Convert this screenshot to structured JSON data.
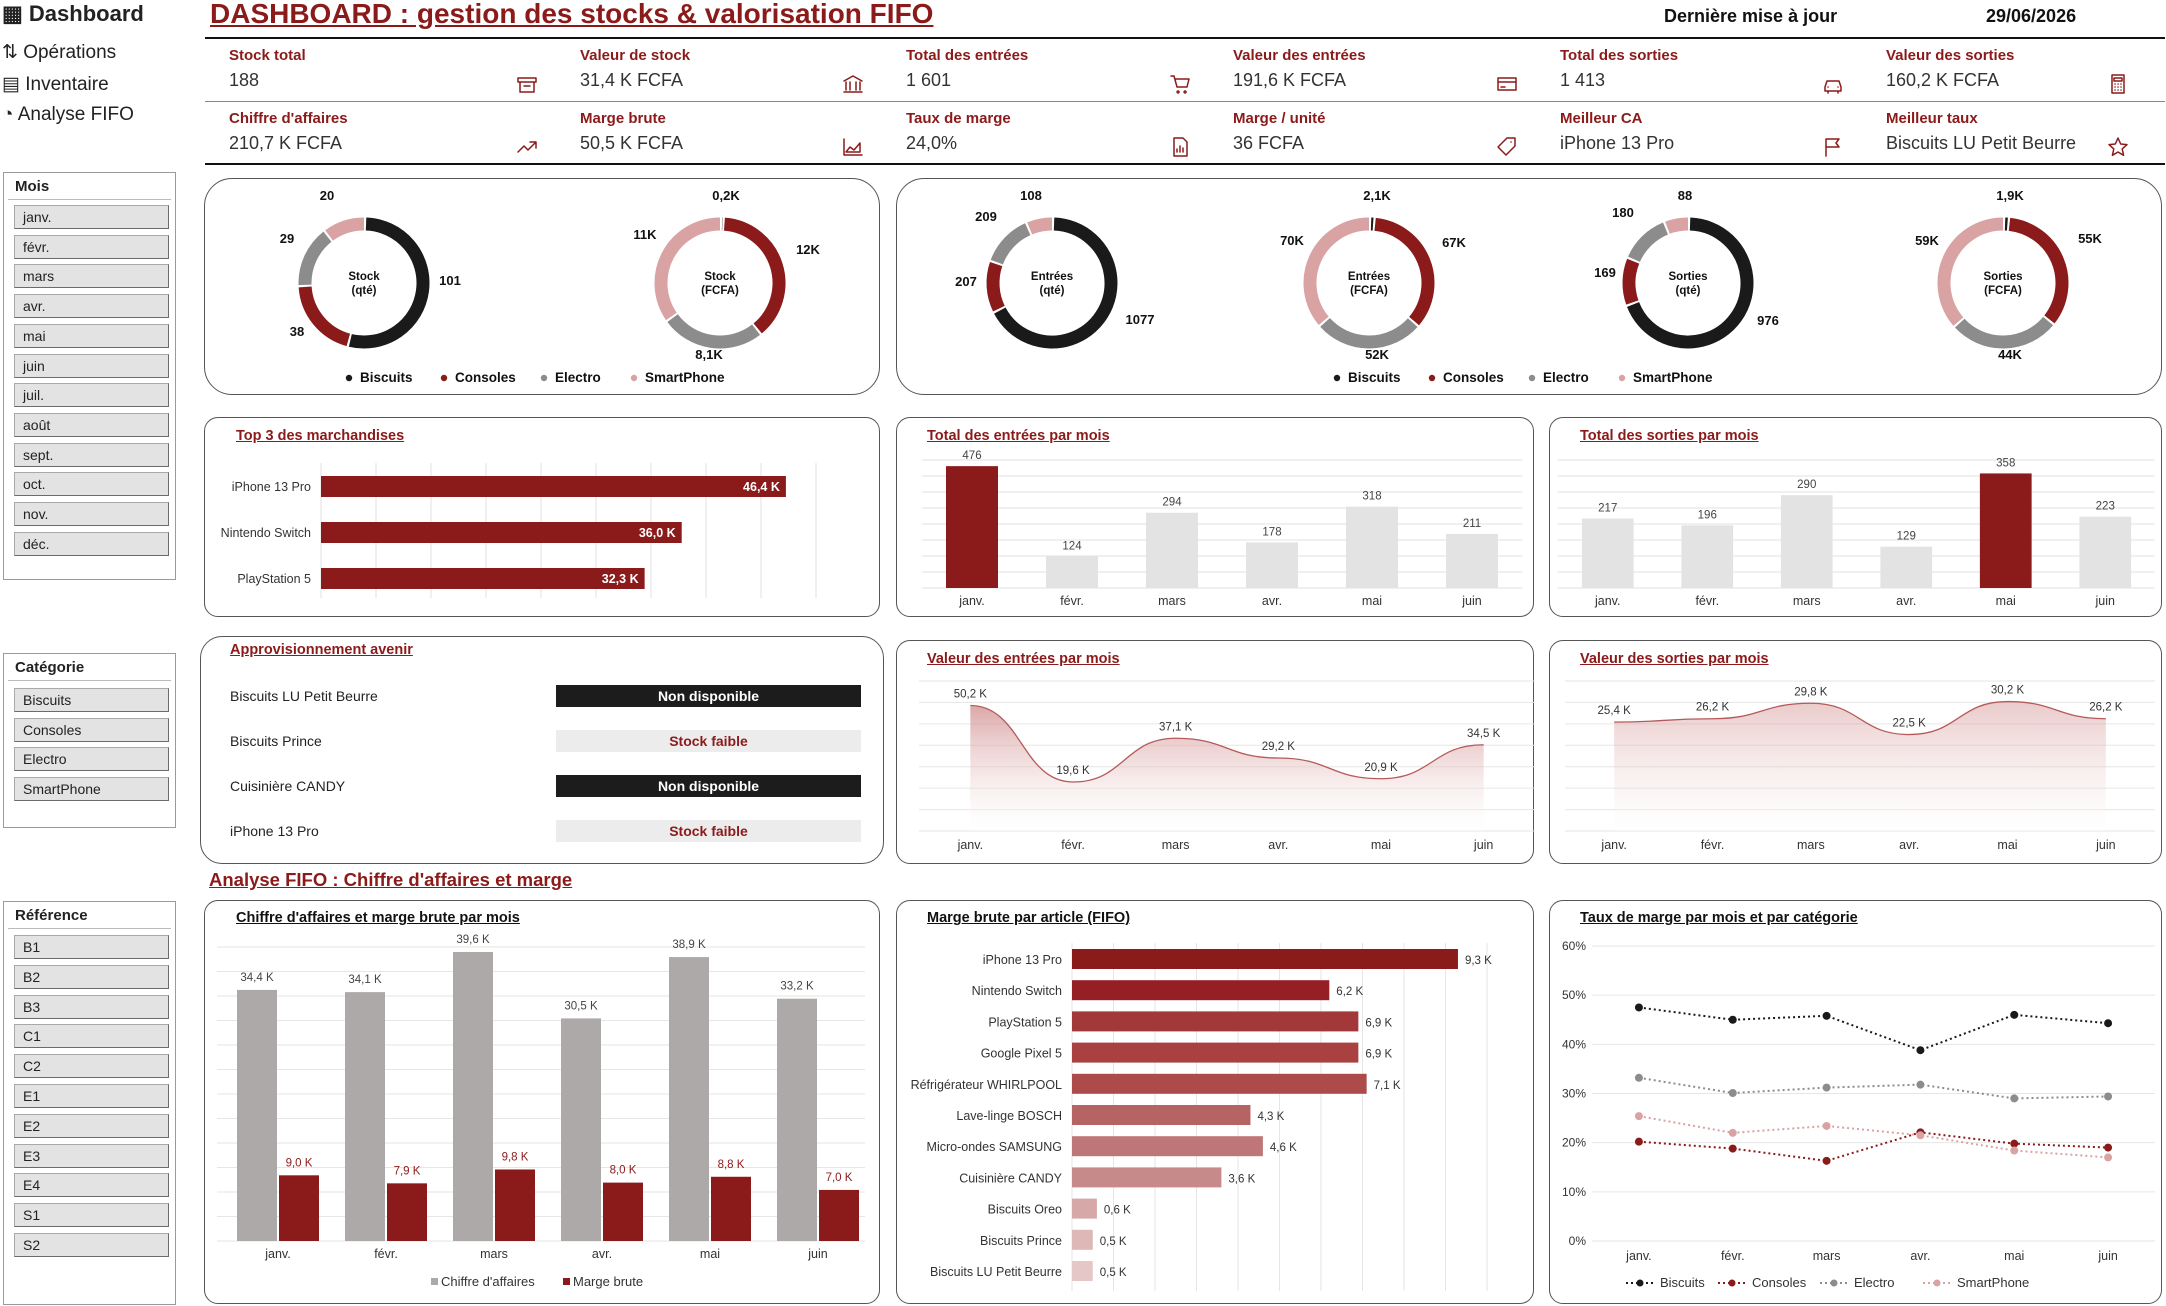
{
  "nav": {
    "items": [
      {
        "icon": "▦",
        "label": "Dashboard"
      },
      {
        "icon": "⇅",
        "label": "Opérations"
      },
      {
        "icon": "▤",
        "label": "Inventaire"
      },
      {
        "icon": "◔",
        "label": "Analyse FIFO"
      }
    ]
  },
  "header": {
    "title": "DASHBOARD : gestion des stocks & valorisation FIFO",
    "updated_label": "Dernière mise à jour",
    "updated_date": "29/06/2026"
  },
  "kpis": [
    {
      "label": "Stock total",
      "value": "188",
      "icon": "box-icon"
    },
    {
      "label": "Valeur de stock",
      "value": "31,4 K FCFA",
      "icon": "bank-icon"
    },
    {
      "label": "Total des entrées",
      "value": "1 601",
      "icon": "cart-icon"
    },
    {
      "label": "Valeur des entrées",
      "value": "191,6 K FCFA",
      "icon": "card-icon"
    },
    {
      "label": "Total des sorties",
      "value": "1 413",
      "icon": "car-icon"
    },
    {
      "label": "Valeur des sorties",
      "value": "160,2 K FCFA",
      "icon": "calculator-icon"
    },
    {
      "label": "Chiffre d'affaires",
      "value": "210,7 K FCFA",
      "icon": "trend-up-icon"
    },
    {
      "label": "Marge brute",
      "value": "50,5 K FCFA",
      "icon": "area-chart-icon"
    },
    {
      "label": "Taux de marge",
      "value": "24,0%",
      "icon": "report-icon"
    },
    {
      "label": "Marge / unité",
      "value": "36 FCFA",
      "icon": "tag-icon"
    },
    {
      "label": "Meilleur CA",
      "value": "iPhone 13 Pro",
      "icon": "flag-icon"
    },
    {
      "label": "Meilleur taux",
      "value": "Biscuits LU Petit Beurre",
      "icon": "star-icon"
    }
  ],
  "slicers": {
    "mois": {
      "header": "Mois",
      "items": [
        "janv.",
        "févr.",
        "mars",
        "avr.",
        "mai",
        "juin",
        "juil.",
        "août",
        "sept.",
        "oct.",
        "nov.",
        "déc."
      ]
    },
    "categorie": {
      "header": "Catégorie",
      "items": [
        "Biscuits",
        "Consoles",
        "Electro",
        "SmartPhone"
      ]
    },
    "reference": {
      "header": "Référence",
      "items": [
        "B1",
        "B2",
        "B3",
        "C1",
        "C2",
        "E1",
        "E2",
        "E3",
        "E4",
        "S1",
        "S2"
      ]
    }
  },
  "colors": {
    "biscuits": "#1a1a1a",
    "consoles": "#8b1a1a",
    "electro": "#8c8c8c",
    "smartphone": "#d9a3a3",
    "accent": "#8b1a1a",
    "bar_gray": "#e3e3e3",
    "ca_gray": "#ada9a9"
  },
  "legend": [
    "Biscuits",
    "Consoles",
    "Electro",
    "SmartPhone"
  ],
  "approvisionnement": {
    "title": "Approvisionnement avenir",
    "rows": [
      {
        "name": "Biscuits LU Petit Beurre",
        "status": "Non disponible"
      },
      {
        "name": "Biscuits Prince",
        "status": "Stock faible"
      },
      {
        "name": "Cuisinière CANDY",
        "status": "Non disponible"
      },
      {
        "name": "iPhone 13 Pro",
        "status": "Stock faible"
      }
    ]
  },
  "section_title": "Analyse FIFO : Chiffre d'affaires et marge",
  "chart_data": [
    {
      "type": "pie",
      "id": "stock_qte",
      "title": "Stock (qté)",
      "categories": [
        "Biscuits",
        "Consoles",
        "Electro",
        "SmartPhone"
      ],
      "values": [
        101,
        38,
        29,
        20
      ],
      "labels": [
        "101",
        "38",
        "29",
        "20"
      ]
    },
    {
      "type": "pie",
      "id": "stock_fcfa",
      "title": "Stock (FCFA)",
      "categories": [
        "Biscuits",
        "Consoles",
        "Electro",
        "SmartPhone"
      ],
      "values": [
        0.2,
        12,
        8.1,
        11
      ],
      "labels": [
        "0,2K",
        "12K",
        "8,1K",
        "11K"
      ]
    },
    {
      "type": "pie",
      "id": "entrees_qte",
      "title": "Entrées (qté)",
      "categories": [
        "Biscuits",
        "Consoles",
        "Electro",
        "SmartPhone"
      ],
      "values": [
        1077,
        207,
        209,
        108
      ],
      "labels": [
        "1077",
        "207",
        "209",
        "108"
      ]
    },
    {
      "type": "pie",
      "id": "entrees_fcfa",
      "title": "Entrées (FCFA)",
      "categories": [
        "Biscuits",
        "Consoles",
        "Electro",
        "SmartPhone"
      ],
      "values": [
        2.1,
        67,
        52,
        70
      ],
      "labels": [
        "2,1K",
        "67K",
        "52K",
        "70K"
      ]
    },
    {
      "type": "pie",
      "id": "sorties_qte",
      "title": "Sorties (qté)",
      "categories": [
        "Biscuits",
        "Consoles",
        "Electro",
        "SmartPhone"
      ],
      "values": [
        976,
        169,
        180,
        88
      ],
      "labels": [
        "976",
        "169",
        "180",
        "88"
      ]
    },
    {
      "type": "pie",
      "id": "sorties_fcfa",
      "title": "Sorties (FCFA)",
      "categories": [
        "Biscuits",
        "Consoles",
        "Electro",
        "SmartPhone"
      ],
      "values": [
        1.9,
        55,
        44,
        59
      ],
      "labels": [
        "1,9K",
        "55K",
        "44K",
        "59K"
      ]
    },
    {
      "type": "bar",
      "id": "top3",
      "title": "Top 3 des marchandises",
      "orientation": "horizontal",
      "categories": [
        "iPhone 13 Pro",
        "Nintendo Switch",
        "PlayStation 5"
      ],
      "values": [
        46.4,
        36.0,
        32.3
      ],
      "labels": [
        "46,4 K",
        "36,0 K",
        "32,3 K"
      ],
      "xlim": [
        0,
        50
      ]
    },
    {
      "type": "bar",
      "id": "entrees_mois",
      "title": "Total des entrées par mois",
      "categories": [
        "janv.",
        "févr.",
        "mars",
        "avr.",
        "mai",
        "juin"
      ],
      "values": [
        476,
        124,
        294,
        178,
        318,
        211
      ],
      "ylim": [
        0,
        500
      ]
    },
    {
      "type": "bar",
      "id": "sorties_mois",
      "title": "Total des sorties par mois",
      "categories": [
        "janv.",
        "févr.",
        "mars",
        "avr.",
        "mai",
        "juin"
      ],
      "values": [
        217,
        196,
        290,
        129,
        358,
        223
      ],
      "ylim": [
        0,
        400
      ]
    },
    {
      "type": "area",
      "id": "val_entrees",
      "title": "Valeur des entrées par mois",
      "categories": [
        "janv.",
        "févr.",
        "mars",
        "avr.",
        "mai",
        "juin"
      ],
      "values": [
        50.2,
        19.6,
        37.1,
        29.2,
        20.9,
        34.5
      ],
      "labels": [
        "50,2 K",
        "19,6 K",
        "37,1 K",
        "29,2 K",
        "20,9 K",
        "34,5 K"
      ],
      "ylim": [
        0,
        60
      ]
    },
    {
      "type": "area",
      "id": "val_sorties",
      "title": "Valeur des sorties par mois",
      "categories": [
        "janv.",
        "févr.",
        "mars",
        "avr.",
        "mai",
        "juin"
      ],
      "values": [
        25.4,
        26.2,
        29.8,
        22.5,
        30.2,
        26.2
      ],
      "labels": [
        "25,4 K",
        "26,2 K",
        "29,8 K",
        "22,5 K",
        "30,2 K",
        "26,2 K"
      ],
      "ylim": [
        0,
        35
      ]
    },
    {
      "type": "bar",
      "id": "ca_marge",
      "title": "Chiffre d'affaires et marge brute par mois",
      "categories": [
        "janv.",
        "févr.",
        "mars",
        "avr.",
        "mai",
        "juin"
      ],
      "series": [
        {
          "name": "Chiffre d'affaires",
          "values": [
            34.4,
            34.1,
            39.6,
            30.5,
            38.9,
            33.2
          ],
          "labels": [
            "34,4 K",
            "34,1 K",
            "39,6 K",
            "30,5 K",
            "38,9 K",
            "33,2 K"
          ]
        },
        {
          "name": "Marge brute",
          "values": [
            9.0,
            7.9,
            9.8,
            8.0,
            8.8,
            7.0
          ],
          "labels": [
            "9,0 K",
            "7,9 K",
            "9,8 K",
            "8,0 K",
            "8,8 K",
            "7,0 K"
          ]
        }
      ],
      "ylim": [
        0,
        40
      ]
    },
    {
      "type": "bar",
      "id": "marge_article",
      "title": "Marge brute par article (FIFO)",
      "orientation": "horizontal",
      "categories": [
        "iPhone 13 Pro",
        "Nintendo Switch",
        "PlayStation 5",
        "Google Pixel 5",
        "Réfrigérateur WHIRLPOOL",
        "Lave-linge BOSCH",
        "Micro-ondes SAMSUNG",
        "Cuisinière CANDY",
        "Biscuits Oreo",
        "Biscuits Prince",
        "Biscuits LU Petit Beurre"
      ],
      "values": [
        9.3,
        6.2,
        6.9,
        6.9,
        7.1,
        4.3,
        4.6,
        3.6,
        0.6,
        0.5,
        0.5
      ],
      "labels": [
        "9,3 K",
        "6,2 K",
        "6,9 K",
        "6,9 K",
        "7,1 K",
        "4,3 K",
        "4,6 K",
        "3,6 K",
        "0,6 K",
        "0,5 K",
        "0,5 K"
      ],
      "xlim": [
        0,
        10
      ]
    },
    {
      "type": "line",
      "id": "taux_marge",
      "title": "Taux de marge par mois et par catégorie",
      "categories": [
        "janv.",
        "févr.",
        "mars",
        "avr.",
        "mai",
        "juin"
      ],
      "yticks": [
        "0%",
        "10%",
        "20%",
        "30%",
        "40%",
        "50%",
        "60%"
      ],
      "ylim": [
        0,
        60
      ],
      "series": [
        {
          "name": "Biscuits",
          "values": [
            47.5,
            45,
            45.8,
            38.8,
            46,
            44.3
          ]
        },
        {
          "name": "Consoles",
          "values": [
            20.2,
            18.8,
            16.3,
            22.1,
            19.8,
            19
          ]
        },
        {
          "name": "Electro",
          "values": [
            33.2,
            30.1,
            31.2,
            31.8,
            29,
            29.4
          ]
        },
        {
          "name": "SmartPhone",
          "values": [
            25.4,
            22,
            23.4,
            21.5,
            18.4,
            17
          ]
        }
      ]
    }
  ]
}
